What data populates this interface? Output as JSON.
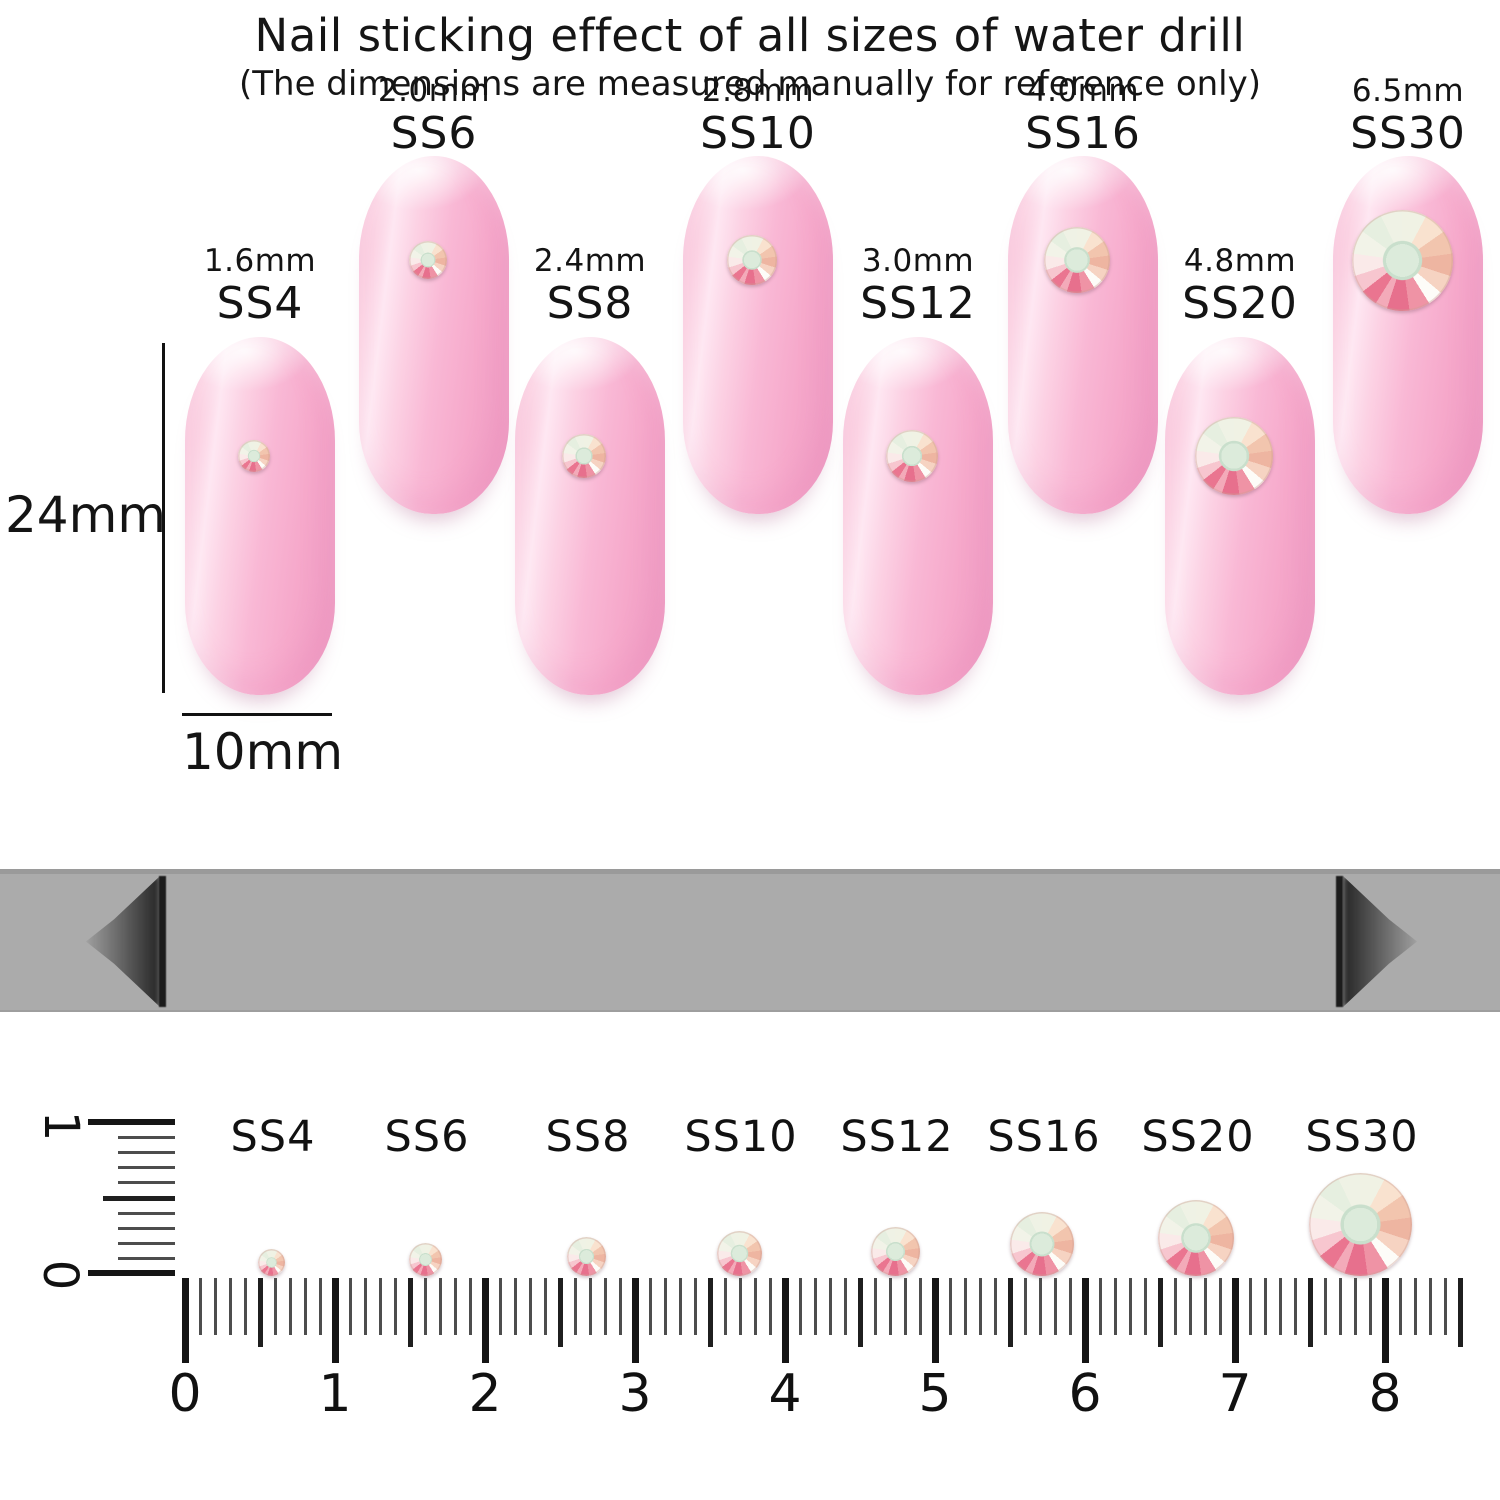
{
  "colors": {
    "nail_pink": "#f8b0d0",
    "nail_highlight": "#fee7f2",
    "banner_gray": "#ababab",
    "arrow_dark": "#1c1c1c",
    "ink": "#141414",
    "stone_center_mint": "#dcebdb",
    "stone_deep_pink": "#e7708d",
    "stone_peach": "#f2c5ae"
  },
  "nail_section": {
    "length_label": "24mm",
    "width_label": "10mm",
    "nails": [
      {
        "ss": "SS4",
        "size_label": "1.6mm",
        "size_mm": 1.6,
        "row": "lower"
      },
      {
        "ss": "SS6",
        "size_label": "2.0mm",
        "size_mm": 2.0,
        "row": "upper"
      },
      {
        "ss": "SS8",
        "size_label": "2.4mm",
        "size_mm": 2.4,
        "row": "lower"
      },
      {
        "ss": "SS10",
        "size_label": "2.8mm",
        "size_mm": 2.8,
        "row": "upper"
      },
      {
        "ss": "SS12",
        "size_label": "3.0mm",
        "size_mm": 3.0,
        "row": "lower"
      },
      {
        "ss": "SS16",
        "size_label": "4.0mm",
        "size_mm": 4.0,
        "row": "upper"
      },
      {
        "ss": "SS20",
        "size_label": "4.8mm",
        "size_mm": 4.8,
        "row": "lower"
      },
      {
        "ss": "SS30",
        "size_label": "6.5mm",
        "size_mm": 6.5,
        "row": "upper"
      }
    ]
  },
  "banner": {
    "line1": "Nail sticking effect of all sizes of water drill",
    "line2": "(The dimensions are measured manually for reference only)"
  },
  "ruler_section": {
    "stone_labels": [
      "SS4",
      "SS6",
      "SS8",
      "SS10",
      "SS12",
      "SS16",
      "SS20",
      "SS30"
    ],
    "stones_mm": [
      1.6,
      2.0,
      2.4,
      2.8,
      3.0,
      4.0,
      4.8,
      6.5
    ],
    "cm_numbers": [
      "0",
      "1",
      "2",
      "3",
      "4",
      "5",
      "6",
      "7",
      "8"
    ],
    "vertical_ruler": {
      "top_number": "1",
      "bottom_number": "0"
    }
  }
}
